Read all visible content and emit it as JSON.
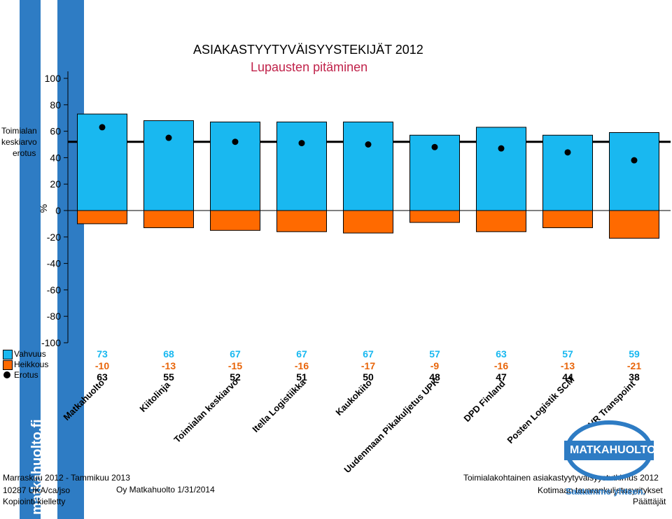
{
  "colors": {
    "stripe": "#2E7CC4",
    "positive": "#19B8F0",
    "negative": "#FF6A00",
    "title_accent": "#C0224A",
    "value_positive": "#19B8F0",
    "value_negative": "#E8650A",
    "footer_blue": "#2E7CC4"
  },
  "brand_text": "matkahuolto.fi",
  "side_note": {
    "line1": "Toimialan",
    "line2": "keskiarvo",
    "line3": "erotus"
  },
  "legend": {
    "strength": "Vahvuus",
    "weakness": "Heikkous",
    "difference": "Erotus"
  },
  "chart_data": {
    "type": "bar",
    "title": "ASIAKASTYYTYVÄISYYSTEKIJÄT 2012",
    "subtitle": "Lupausten pitäminen",
    "ylabel": "%",
    "ylim": [
      -100,
      100
    ],
    "yticks": [
      100,
      80,
      60,
      40,
      20,
      0,
      -20,
      -40,
      -60,
      -80,
      -100
    ],
    "industry_average_line": 52,
    "categories": [
      "Matkahuolto",
      "Kiitolinja",
      "Toimialan keskiarvo",
      "Itella Logistiikka",
      "Kaukokiito",
      "Uudenmaan Pikakuljetus UPK",
      "DPD Finland",
      "Posten Logistik SCM",
      "VR Transpoint"
    ],
    "series": [
      {
        "name": "Vahvuus",
        "values": [
          73,
          68,
          67,
          67,
          67,
          57,
          63,
          57,
          59
        ]
      },
      {
        "name": "Heikkous",
        "values": [
          -10,
          -13,
          -15,
          -16,
          -17,
          -9,
          -16,
          -13,
          -21
        ]
      },
      {
        "name": "Erotus",
        "values": [
          63,
          55,
          52,
          51,
          50,
          48,
          47,
          44,
          38
        ]
      }
    ],
    "legend_position": "left"
  },
  "footer": {
    "left1": "Marraskuu 2012 - Tammikuu 2013",
    "left2": "10287 UKA/ca/jso",
    "left3": "Kopiointi kielletty",
    "center": "Oy Matkahuolto 1/31/2014",
    "right1": "Toimialakohtainen asiakastyytyväisyystutkimus 2012",
    "right2": "Kotimaan tavarankuljetusyritykset",
    "right3": "Päättäjät"
  },
  "logo": {
    "name": "MATKAHUOLTO",
    "slogan": "Saatamme yhteen."
  }
}
